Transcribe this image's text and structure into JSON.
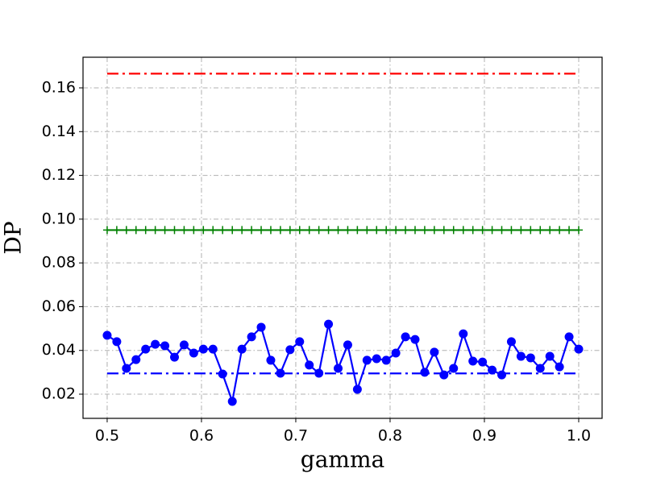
{
  "chart_data": {
    "type": "line",
    "x_label": "gamma",
    "y_label": "DP",
    "xlim": [
      0.4744,
      1.0248
    ],
    "ylim": [
      0.00895,
      0.174
    ],
    "xticks": [
      0.5,
      0.6,
      0.7,
      0.8,
      0.9,
      {
        "value": 1,
        "label": "1.0"
      }
    ],
    "yticks": [
      0.02,
      0.04,
      0.06,
      0.08,
      {
        "value": 0.1,
        "label": "0.10"
      },
      0.12,
      0.14,
      0.16
    ],
    "grid": true,
    "x": [
      0.5,
      0.5102,
      0.5204,
      0.5306,
      0.5408,
      0.551,
      0.5612,
      0.5714,
      0.5816,
      0.5918,
      0.602,
      0.6122,
      0.6224,
      0.6327,
      0.6429,
      0.6531,
      0.6633,
      0.6735,
      0.6837,
      0.6939,
      0.7041,
      0.7143,
      0.7245,
      0.7347,
      0.7449,
      0.7551,
      0.7653,
      0.7755,
      0.7857,
      0.7959,
      0.8061,
      0.8163,
      0.8265,
      0.8367,
      0.8469,
      0.8571,
      0.8673,
      0.8776,
      0.8878,
      0.898,
      0.9082,
      0.9184,
      0.9286,
      0.9388,
      0.949,
      0.9592,
      0.9694,
      0.9796,
      0.9898,
      1.0
    ],
    "series": [
      {
        "color": "#ff0000",
        "linestyle": "dashdot",
        "marker": "none",
        "values": [
          0.1665,
          0.1665,
          0.1665,
          0.1665,
          0.1665,
          0.1665,
          0.1665,
          0.1665,
          0.1665,
          0.1665,
          0.1665,
          0.1665,
          0.1665,
          0.1665,
          0.1665,
          0.1665,
          0.1665,
          0.1665,
          0.1665,
          0.1665,
          0.1665,
          0.1665,
          0.1665,
          0.1665,
          0.1665,
          0.1665,
          0.1665,
          0.1665,
          0.1665,
          0.1665,
          0.1665,
          0.1665,
          0.1665,
          0.1665,
          0.1665,
          0.1665,
          0.1665,
          0.1665,
          0.1665,
          0.1665,
          0.1665,
          0.1665,
          0.1665,
          0.1665,
          0.1665,
          0.1665,
          0.1665,
          0.1665,
          0.1665,
          0.1665
        ]
      },
      {
        "color": "#008000",
        "linestyle": "solid",
        "marker": "plus",
        "values": [
          0.095,
          0.095,
          0.095,
          0.095,
          0.095,
          0.095,
          0.095,
          0.095,
          0.095,
          0.095,
          0.095,
          0.095,
          0.095,
          0.095,
          0.095,
          0.095,
          0.095,
          0.095,
          0.095,
          0.095,
          0.095,
          0.095,
          0.095,
          0.095,
          0.095,
          0.095,
          0.095,
          0.095,
          0.095,
          0.095,
          0.095,
          0.095,
          0.095,
          0.095,
          0.095,
          0.095,
          0.095,
          0.095,
          0.095,
          0.095,
          0.095,
          0.095,
          0.095,
          0.095,
          0.095,
          0.095,
          0.095,
          0.095,
          0.095,
          0.095
        ]
      },
      {
        "color": "#0000ff",
        "linestyle": "dashdot",
        "marker": "none",
        "values": [
          0.0295,
          0.0295,
          0.0295,
          0.0295,
          0.0295,
          0.0295,
          0.0295,
          0.0295,
          0.0295,
          0.0295,
          0.0295,
          0.0295,
          0.0295,
          0.0295,
          0.0295,
          0.0295,
          0.0295,
          0.0295,
          0.0295,
          0.0295,
          0.0295,
          0.0295,
          0.0295,
          0.0295,
          0.0295,
          0.0295,
          0.0295,
          0.0295,
          0.0295,
          0.0295,
          0.0295,
          0.0295,
          0.0295,
          0.0295,
          0.0295,
          0.0295,
          0.0295,
          0.0295,
          0.0295,
          0.0295,
          0.0295,
          0.0295,
          0.0295,
          0.0295,
          0.0295,
          0.0295,
          0.0295,
          0.0295,
          0.0295,
          0.0295
        ]
      },
      {
        "color": "#0000ff",
        "linestyle": "solid",
        "marker": "circle",
        "values": [
          0.0469,
          0.044,
          0.0318,
          0.0358,
          0.0406,
          0.0428,
          0.0421,
          0.0369,
          0.0425,
          0.0388,
          0.0406,
          0.0406,
          0.0292,
          0.0167,
          0.0406,
          0.0462,
          0.0506,
          0.0355,
          0.0296,
          0.0403,
          0.044,
          0.0333,
          0.0296,
          0.052,
          0.0318,
          0.0425,
          0.0222,
          0.0355,
          0.0362,
          0.0355,
          0.0388,
          0.0462,
          0.045,
          0.03,
          0.0392,
          0.0288,
          0.0318,
          0.0476,
          0.0351,
          0.0347,
          0.031,
          0.0288,
          0.044,
          0.0373,
          0.0366,
          0.0318,
          0.0373,
          0.0325,
          0.0462,
          0.0406
        ]
      }
    ]
  }
}
